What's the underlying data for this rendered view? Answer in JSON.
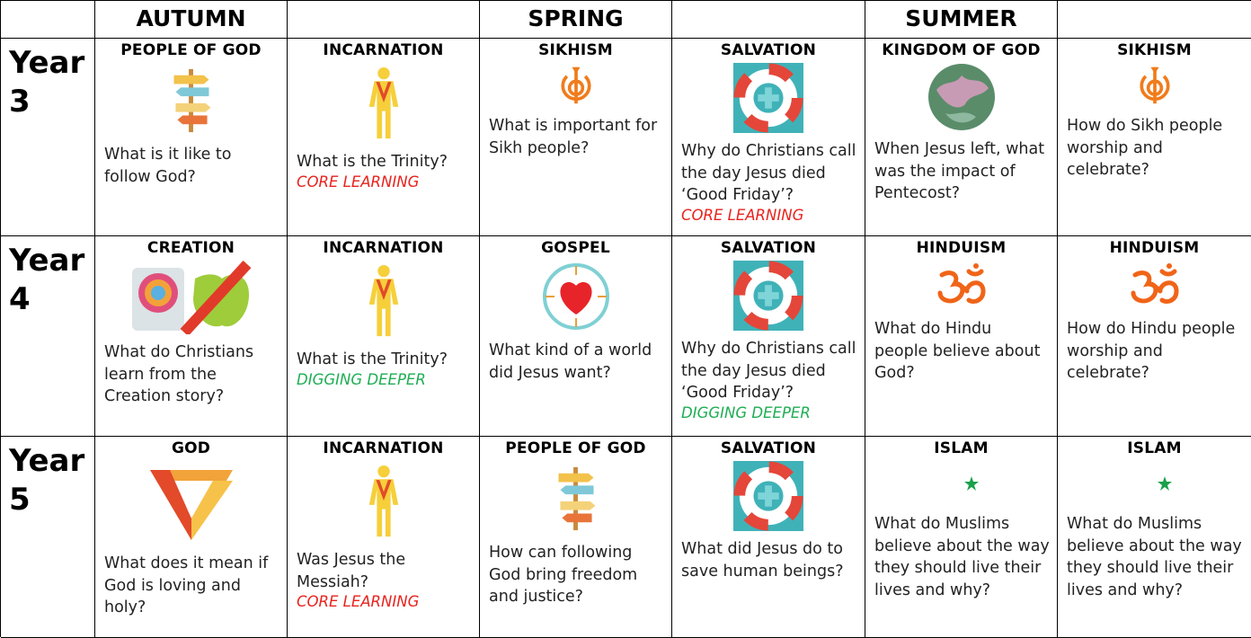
{
  "header": {
    "autumn": "AUTUMN",
    "spring": "SPRING",
    "summer": "SUMMER"
  },
  "rows": [
    {
      "label": "Year",
      "number": "3",
      "cells": [
        {
          "title": "PEOPLE OF GOD",
          "question": "What is it like to follow God?"
        },
        {
          "title": "INCARNATION",
          "question": "What is the Trinity?",
          "note": "CORE LEARNING",
          "note_color": "#e8231e"
        },
        {
          "title": "SIKHISM",
          "question": "What is important for Sikh people?"
        },
        {
          "title": "SALVATION",
          "question": "Why do Christians call the day Jesus died ‘Good Friday’?",
          "note": "CORE LEARNING",
          "note_color": "#e8231e"
        },
        {
          "title": "KINGDOM OF GOD",
          "question": "When Jesus left, what was the impact of Pentecost?"
        },
        {
          "title": "SIKHISM",
          "question": "How do Sikh people worship and celebrate?"
        }
      ]
    },
    {
      "label": "Year",
      "number": "4",
      "cells": [
        {
          "title": "CREATION",
          "question": "What do Christians learn from the Creation story?"
        },
        {
          "title": "INCARNATION",
          "question": "What is the Trinity?",
          "note": "DIGGING DEEPER",
          "note_color": "#1fae54"
        },
        {
          "title": "GOSPEL",
          "question": "What kind of a world did Jesus want?"
        },
        {
          "title": "SALVATION",
          "question": "Why do Christians call the day Jesus died ‘Good Friday’?",
          "note": "DIGGING DEEPER",
          "note_color": "#1fae54"
        },
        {
          "title": "HINDUISM",
          "question": "What do Hindu people believe about God?"
        },
        {
          "title": "HINDUISM",
          "question": "How do Hindu people worship and celebrate?"
        }
      ]
    },
    {
      "label": "Year",
      "number": "5",
      "cells": [
        {
          "title": "GOD",
          "question": "What does it mean if God is loving and holy?"
        },
        {
          "title": "INCARNATION",
          "question": "Was Jesus the Messiah?",
          "note": "CORE LEARNING",
          "note_color": "#e8231e"
        },
        {
          "title": "PEOPLE OF GOD",
          "question": "How can following God bring freedom and justice?"
        },
        {
          "title": "SALVATION",
          "question": "What did Jesus do to save human beings?"
        },
        {
          "title": "ISLAM",
          "question": "What do Muslims believe about the way they should live their lives and why?"
        },
        {
          "title": "ISLAM",
          "question": "What do Muslims believe about the way they should live their lives and why?"
        }
      ]
    }
  ]
}
